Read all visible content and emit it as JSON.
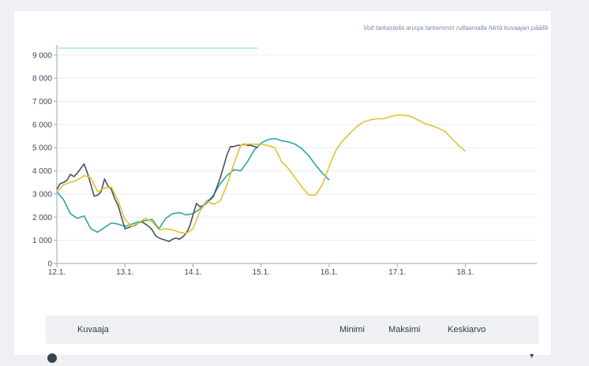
{
  "hint": "Voit tarkastella arvoja tarkemmin rullaamalla hiirtä kuvaajan päällä",
  "table": {
    "col_chart": "Kuvaaja",
    "col_min": "Minimi",
    "col_max": "Maksimi",
    "col_avg": "Keskiarvo"
  },
  "chart_data": {
    "type": "line",
    "ylim": [
      0,
      9300
    ],
    "y_ticks": [
      0,
      1000,
      2000,
      3000,
      4000,
      5000,
      6000,
      7000,
      8000,
      9000
    ],
    "y_tick_labels": [
      "0",
      "1 000",
      "2 000",
      "3 000",
      "4 000",
      "5 000",
      "6 000",
      "7 000",
      "8 000",
      "9 000"
    ],
    "xlim": [
      0,
      7.05
    ],
    "x_ticks": [
      0,
      1,
      2,
      3,
      4,
      5,
      6
    ],
    "x_tick_labels": [
      "12.1.",
      "13.1.",
      "14.1.",
      "15.1.",
      "16.1.",
      "17.1.",
      "18.1."
    ],
    "reference_line": {
      "value": 9300,
      "x_range": [
        0,
        2.95
      ],
      "color": "#7fd3dd"
    },
    "series": [
      {
        "color": "#4a525e",
        "x": [
          0,
          0.05,
          0.1,
          0.15,
          0.2,
          0.25,
          0.3,
          0.35,
          0.4,
          0.45,
          0.5,
          0.55,
          0.6,
          0.65,
          0.7,
          0.75,
          0.8,
          0.85,
          0.9,
          0.95,
          1.0,
          1.05,
          1.1,
          1.15,
          1.2,
          1.25,
          1.3,
          1.35,
          1.4,
          1.45,
          1.5,
          1.55,
          1.6,
          1.65,
          1.7,
          1.75,
          1.8,
          1.85,
          1.9,
          1.95,
          2.0,
          2.05,
          2.1,
          2.15,
          2.2,
          2.25,
          2.3,
          2.35,
          2.4,
          2.45,
          2.5,
          2.55,
          2.6,
          2.65,
          2.7,
          2.75,
          2.8,
          2.85,
          2.9,
          2.95
        ],
        "values": [
          3200,
          3450,
          3500,
          3600,
          3850,
          3750,
          3900,
          4100,
          4300,
          3900,
          3400,
          2900,
          2950,
          3100,
          3650,
          3350,
          3200,
          2800,
          2500,
          2000,
          1500,
          1550,
          1600,
          1650,
          1750,
          1800,
          1700,
          1600,
          1450,
          1200,
          1100,
          1050,
          1000,
          950,
          1050,
          1100,
          1050,
          1150,
          1300,
          1600,
          2100,
          2600,
          2450,
          2500,
          2700,
          2750,
          2900,
          3300,
          3700,
          4200,
          4700,
          5050,
          5050,
          5100,
          5100,
          5150,
          5100,
          5100,
          5050,
          5000
        ]
      },
      {
        "color": "#e3c22f",
        "x": [
          0,
          0.1,
          0.2,
          0.3,
          0.4,
          0.5,
          0.6,
          0.7,
          0.8,
          0.9,
          1.0,
          1.1,
          1.2,
          1.3,
          1.4,
          1.5,
          1.6,
          1.7,
          1.8,
          1.9,
          2.0,
          2.1,
          2.2,
          2.3,
          2.4,
          2.5,
          2.6,
          2.7,
          2.8,
          2.9,
          3.0,
          3.1,
          3.2,
          3.3,
          3.4,
          3.5,
          3.6,
          3.7,
          3.8,
          3.9,
          4.0,
          4.1,
          4.2,
          4.3,
          4.4,
          4.5,
          4.6,
          4.7,
          4.8,
          4.9,
          5.0,
          5.1,
          5.2,
          5.3,
          5.4,
          5.5,
          5.6,
          5.7,
          5.8,
          5.9,
          6.0
        ],
        "values": [
          3100,
          3400,
          3500,
          3600,
          3800,
          3700,
          3100,
          3250,
          3300,
          2700,
          1900,
          1600,
          1750,
          1950,
          1800,
          1450,
          1500,
          1450,
          1350,
          1300,
          1500,
          2250,
          2700,
          2550,
          2700,
          3400,
          4300,
          5100,
          5150,
          5150,
          5150,
          5100,
          5000,
          4400,
          4100,
          3700,
          3300,
          2950,
          2950,
          3400,
          4200,
          4900,
          5300,
          5600,
          5900,
          6100,
          6200,
          6250,
          6250,
          6350,
          6400,
          6400,
          6350,
          6200,
          6050,
          5950,
          5850,
          5700,
          5400,
          5100,
          4850
        ]
      },
      {
        "color": "#2aa7a7",
        "x": [
          0,
          0.1,
          0.2,
          0.3,
          0.4,
          0.5,
          0.6,
          0.7,
          0.8,
          0.9,
          1.0,
          1.1,
          1.2,
          1.3,
          1.4,
          1.5,
          1.6,
          1.7,
          1.8,
          1.9,
          2.0,
          2.1,
          2.2,
          2.3,
          2.4,
          2.5,
          2.6,
          2.7,
          2.8,
          2.9,
          3.0,
          3.1,
          3.2,
          3.3,
          3.4,
          3.5,
          3.6,
          3.7,
          3.8,
          3.9,
          4.0
        ],
        "values": [
          3100,
          2750,
          2150,
          1950,
          2050,
          1500,
          1350,
          1550,
          1750,
          1700,
          1600,
          1700,
          1800,
          1850,
          1900,
          1500,
          1950,
          2150,
          2200,
          2100,
          2150,
          2350,
          2600,
          2950,
          3450,
          3800,
          4050,
          4000,
          4400,
          4900,
          5200,
          5350,
          5400,
          5300,
          5250,
          5150,
          4950,
          4650,
          4250,
          3900,
          3600
        ]
      }
    ]
  }
}
